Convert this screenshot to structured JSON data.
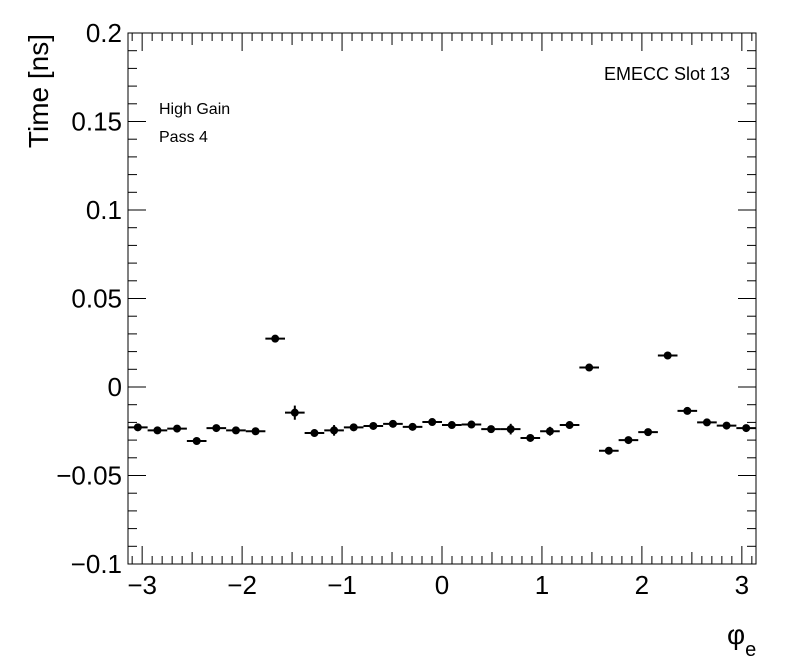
{
  "chart_data": {
    "type": "scatter",
    "title": "",
    "xlabel": "φ",
    "xlabel_subscript": "e",
    "ylabel": "Time [ns]",
    "xlim": [
      -3.1416,
      3.1416
    ],
    "ylim": [
      -0.1,
      0.2
    ],
    "x_ticks": [
      -3,
      -2,
      -1,
      0,
      1,
      2,
      3
    ],
    "x_tick_labels": [
      "−3",
      "−2",
      "−1",
      "0",
      "1",
      "2",
      "3"
    ],
    "y_ticks": [
      -0.1,
      -0.05,
      0,
      0.05,
      0.1,
      0.15,
      0.2
    ],
    "y_tick_labels": [
      "−0.1",
      "−0.05",
      "0",
      "0.05",
      "0.1",
      "0.15",
      "0.2"
    ],
    "grid": false,
    "annotations": {
      "top_right": "EMECC Slot 13",
      "line1": "High Gain",
      "line2": "Pass 4"
    },
    "series": [
      {
        "marker_color": "#000000",
        "x_half_width": 0.0982,
        "x": [
          -3.0434,
          -2.8471,
          -2.6507,
          -2.4544,
          -2.258,
          -2.0617,
          -1.8653,
          -1.669,
          -1.4726,
          -1.2763,
          -1.0799,
          -0.8836,
          -0.6872,
          -0.4909,
          -0.2945,
          -0.0982,
          0.0982,
          0.2945,
          0.4909,
          0.6872,
          0.8836,
          1.0799,
          1.2763,
          1.4726,
          1.669,
          1.8653,
          2.0617,
          2.258,
          2.4544,
          2.6507,
          2.8471,
          3.0434
        ],
        "y": [
          -0.0228,
          -0.0245,
          -0.0235,
          -0.0305,
          -0.0232,
          -0.0245,
          -0.025,
          0.0273,
          -0.0145,
          -0.026,
          -0.0245,
          -0.0228,
          -0.022,
          -0.0208,
          -0.0225,
          -0.0198,
          -0.0215,
          -0.0212,
          -0.0238,
          -0.0238,
          -0.0288,
          -0.025,
          -0.0215,
          0.011,
          -0.036,
          -0.03,
          -0.0255,
          0.0178,
          -0.0135,
          -0.02,
          -0.0218,
          -0.0232
        ],
        "y_err": [
          0.0015,
          0.0012,
          0.0012,
          0.0015,
          0.001,
          0.001,
          0.0012,
          0.001,
          0.004,
          0.0015,
          0.003,
          0.0012,
          0.0015,
          0.0012,
          0.0012,
          0.0012,
          0.0012,
          0.0012,
          0.0015,
          0.003,
          0.002,
          0.0025,
          0.002,
          0.001,
          0.001,
          0.0012,
          0.0015,
          0.001,
          0.001,
          0.001,
          0.001,
          0.002
        ]
      }
    ]
  }
}
